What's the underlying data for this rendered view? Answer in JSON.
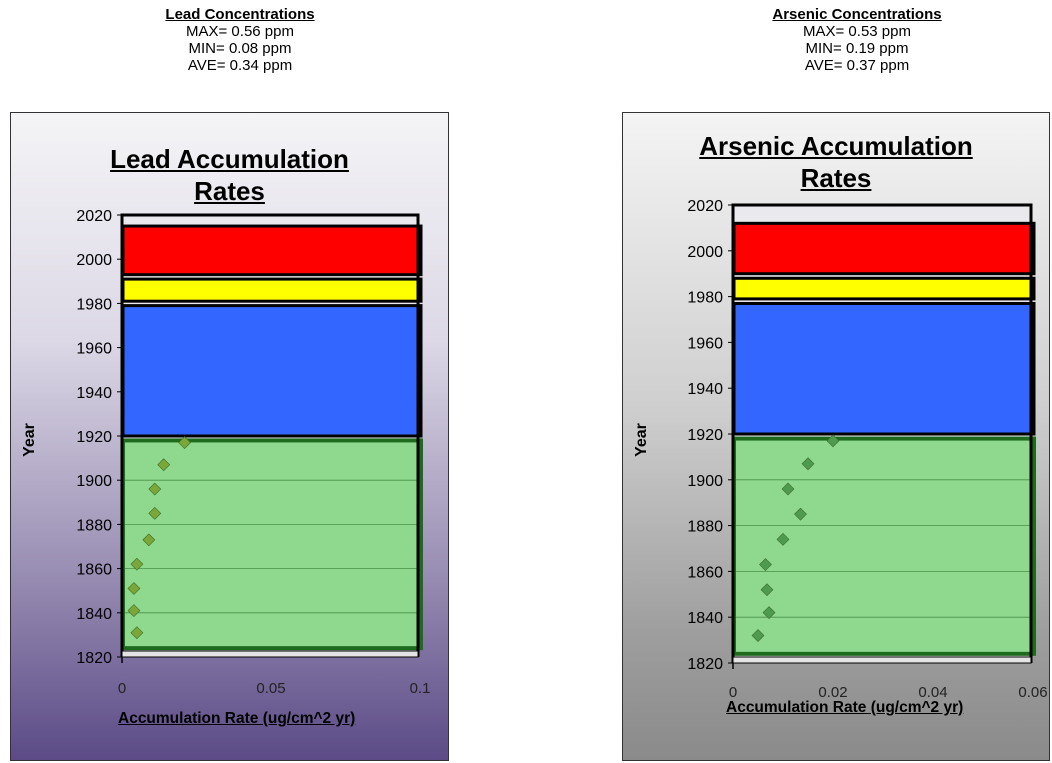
{
  "colors": {
    "red": "#ff0000",
    "yellow": "#ffff00",
    "blue": "#3366ff",
    "green_fill": "#8ed98e",
    "green_border": "#1e6b1e",
    "marker_lead": "#7ba63a",
    "marker_arsenic": "#4e9a4e"
  },
  "chart_data": [
    {
      "type": "scatter",
      "stats": {
        "heading": "Lead Concentrations",
        "max": "MAX= 0.56 ppm",
        "min": "MIN= 0.08 ppm",
        "ave": "AVE= 0.34 ppm"
      },
      "title_line1": "Lead Accumulation",
      "title_line2": "Rates",
      "xlabel": "Accumulation Rate (ug/cm^2 yr)",
      "ylabel": "Year",
      "xlim": [
        0,
        0.1
      ],
      "ylim": [
        1820,
        2020
      ],
      "xticks": [
        0,
        0.05,
        0.1
      ],
      "xtick_labels": [
        "0",
        "0.05",
        "0.1"
      ],
      "yticks": [
        1820,
        1840,
        1860,
        1880,
        1900,
        1920,
        1940,
        1960,
        1980,
        2000,
        2020
      ],
      "bands": [
        {
          "color": "red",
          "from": 1993,
          "to": 2015
        },
        {
          "color": "yellow",
          "from": 1981,
          "to": 1991
        },
        {
          "color": "blue",
          "from": 1920,
          "to": 1979
        },
        {
          "color": "green",
          "from": 1824,
          "to": 1918
        }
      ],
      "points": [
        {
          "x": 0.021,
          "y": 1917
        },
        {
          "x": 0.014,
          "y": 1907
        },
        {
          "x": 0.011,
          "y": 1896
        },
        {
          "x": 0.011,
          "y": 1885
        },
        {
          "x": 0.009,
          "y": 1873
        },
        {
          "x": 0.005,
          "y": 1862
        },
        {
          "x": 0.004,
          "y": 1851
        },
        {
          "x": 0.004,
          "y": 1841
        },
        {
          "x": 0.005,
          "y": 1831
        }
      ],
      "grid": true
    },
    {
      "type": "scatter",
      "stats": {
        "heading": "Arsenic Concentrations",
        "max": "MAX= 0.53 ppm",
        "min": "MIN= 0.19 ppm",
        "ave": "AVE= 0.37 ppm"
      },
      "title_line1": "Arsenic Accumulation",
      "title_line2": "Rates",
      "xlabel": "Accumulation Rate (ug/cm^2 yr)",
      "ylabel": "Year",
      "xlim": [
        0,
        0.06
      ],
      "ylim": [
        1820,
        2020
      ],
      "xticks": [
        0,
        0.02,
        0.04,
        0.06
      ],
      "xtick_labels": [
        "0",
        "0.02",
        "0.04",
        "0.06"
      ],
      "yticks": [
        1820,
        1840,
        1860,
        1880,
        1900,
        1920,
        1940,
        1960,
        1980,
        2000,
        2020
      ],
      "bands": [
        {
          "color": "red",
          "from": 1990,
          "to": 2012
        },
        {
          "color": "yellow",
          "from": 1979,
          "to": 1988
        },
        {
          "color": "blue",
          "from": 1920,
          "to": 1977
        },
        {
          "color": "green",
          "from": 1824,
          "to": 1918
        }
      ],
      "points": [
        {
          "x": 0.02,
          "y": 1917
        },
        {
          "x": 0.015,
          "y": 1907
        },
        {
          "x": 0.011,
          "y": 1896
        },
        {
          "x": 0.0135,
          "y": 1885
        },
        {
          "x": 0.01,
          "y": 1874
        },
        {
          "x": 0.0065,
          "y": 1863
        },
        {
          "x": 0.0068,
          "y": 1852
        },
        {
          "x": 0.0072,
          "y": 1842
        },
        {
          "x": 0.005,
          "y": 1832
        }
      ],
      "grid": true
    }
  ]
}
